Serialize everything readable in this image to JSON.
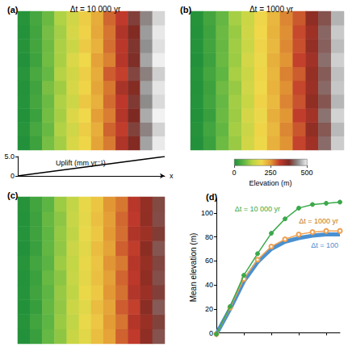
{
  "chart_data": [
    {
      "type": "heatmap",
      "panel_label": "(a)",
      "title": "Δt = 10 000 yr",
      "tick_labels": false,
      "cells": [
        [
          4,
          30,
          80,
          110,
          160,
          190,
          240,
          270,
          330,
          370,
          450,
          495
        ],
        [
          8,
          40,
          70,
          120,
          150,
          200,
          230,
          285,
          310,
          390,
          430,
          480
        ],
        [
          3,
          28,
          78,
          112,
          165,
          188,
          245,
          268,
          325,
          375,
          455,
          500
        ],
        [
          6,
          38,
          72,
          118,
          148,
          205,
          228,
          280,
          315,
          385,
          435,
          485
        ],
        [
          5,
          33,
          82,
          108,
          158,
          192,
          238,
          272,
          335,
          368,
          448,
          492
        ],
        [
          9,
          42,
          68,
          122,
          152,
          198,
          232,
          290,
          308,
          392,
          428,
          478
        ],
        [
          4,
          31,
          76,
          114,
          162,
          186,
          242,
          266,
          322,
          378,
          452,
          498
        ],
        [
          7,
          37,
          74,
          116,
          146,
          202,
          226,
          278,
          318,
          382,
          438,
          488
        ],
        [
          5,
          34,
          79,
          111,
          157,
          194,
          236,
          274,
          328,
          372,
          446,
          494
        ],
        [
          8,
          39,
          71,
          119,
          151,
          199,
          231,
          283,
          312,
          388,
          432,
          482
        ]
      ]
    },
    {
      "type": "line",
      "title": "Uplift (mm yr⁻¹)",
      "x_label": "x",
      "x": [
        0,
        1
      ],
      "values": [
        0,
        5
      ],
      "xlim": [
        0,
        1
      ],
      "ylim": [
        0,
        5
      ],
      "yticks": [
        0,
        {
          "value": 5,
          "label": "5.0"
        }
      ],
      "tick_labels": "y",
      "color": "#000000"
    },
    {
      "type": "heatmap",
      "panel_label": "(b)",
      "title": "Δt = 1000 yr",
      "tick_labels": false,
      "cells": [
        [
          4,
          28,
          74,
          104,
          152,
          184,
          228,
          254,
          306,
          344,
          416,
          476
        ],
        [
          7,
          36,
          66,
          112,
          144,
          192,
          220,
          262,
          294,
          356,
          404,
          464
        ],
        [
          3,
          26,
          72,
          106,
          156,
          182,
          230,
          252,
          310,
          340,
          420,
          480
        ],
        [
          6,
          35,
          68,
          110,
          142,
          194,
          218,
          264,
          296,
          358,
          402,
          462
        ],
        [
          5,
          30,
          75,
          102,
          150,
          186,
          226,
          256,
          304,
          348,
          414,
          472
        ],
        [
          8,
          38,
          64,
          114,
          146,
          190,
          222,
          266,
          290,
          352,
          406,
          468
        ],
        [
          4,
          29,
          71,
          105,
          154,
          183,
          229,
          253,
          308,
          342,
          418,
          478
        ],
        [
          6,
          34,
          69,
          109,
          143,
          193,
          219,
          261,
          298,
          354,
          408,
          466
        ],
        [
          5,
          31,
          73,
          103,
          149,
          187,
          225,
          257,
          302,
          346,
          412,
          474
        ],
        [
          7,
          37,
          67,
          113,
          145,
          191,
          221,
          263,
          292,
          360,
          400,
          460
        ]
      ]
    },
    {
      "type": "colorbar",
      "title": "Elevation (m)",
      "range": [
        0,
        500
      ],
      "ticks": [
        0,
        250,
        500
      ]
    },
    {
      "type": "heatmap",
      "panel_label": "(c)",
      "tick_labels": false,
      "cells": [
        [
          4,
          26,
          68,
          96,
          142,
          171,
          214,
          241,
          286,
          312,
          360,
          400
        ],
        [
          7,
          34,
          62,
          104,
          134,
          179,
          206,
          249,
          274,
          324,
          350,
          390
        ],
        [
          3,
          24,
          67,
          98,
          146,
          169,
          216,
          239,
          290,
          308,
          364,
          405
        ],
        [
          6,
          33,
          63,
          102,
          132,
          181,
          204,
          251,
          276,
          326,
          348,
          388
        ],
        [
          5,
          28,
          70,
          94,
          140,
          173,
          212,
          243,
          284,
          316,
          358,
          398
        ],
        [
          8,
          36,
          60,
          106,
          136,
          177,
          208,
          253,
          270,
          322,
          352,
          392
        ],
        [
          4,
          27,
          66,
          97,
          144,
          170,
          215,
          240,
          288,
          310,
          362,
          402
        ],
        [
          6,
          32,
          64,
          101,
          133,
          180,
          205,
          250,
          278,
          328,
          346,
          386
        ],
        [
          5,
          29,
          69,
          95,
          141,
          174,
          213,
          244,
          282,
          314,
          356,
          396
        ],
        [
          7,
          35,
          61,
          105,
          135,
          178,
          207,
          252,
          272,
          320,
          354,
          394
        ]
      ]
    },
    {
      "type": "line",
      "panel_label": "(d)",
      "y_label": "Mean elevation (m)",
      "x": [
        0,
        0.5,
        1,
        1.5,
        2,
        2.5,
        3,
        3.5,
        4,
        4.5
      ],
      "series": [
        {
          "name": "Δt = 10 000 yr",
          "color": "#3aa94a",
          "marker": "circle",
          "line_style": "solid",
          "values": [
            -1,
            22,
            48,
            66,
            83,
            95,
            104,
            107,
            108,
            109
          ]
        },
        {
          "name": "Δt = 1000 yr",
          "color": "#f0a050",
          "marker": "open_circle",
          "line_style": "solid",
          "values": [
            -1,
            21,
            45,
            61,
            72,
            78,
            82,
            84,
            85,
            85
          ]
        },
        {
          "name": "Δt = 100",
          "color": "#4a90d0",
          "marker": "none",
          "line_style": "solid",
          "values": [
            -1,
            20,
            43,
            59,
            70,
            76,
            79,
            81,
            82,
            82
          ]
        }
      ],
      "xlim": [
        0,
        4.5
      ],
      "xticks": [
        0,
        1,
        2,
        3,
        4
      ],
      "ylim": [
        -3,
        112
      ],
      "yticks": [
        0,
        20,
        40,
        60,
        80,
        100
      ],
      "tick_labels": "y",
      "grid": false
    }
  ]
}
